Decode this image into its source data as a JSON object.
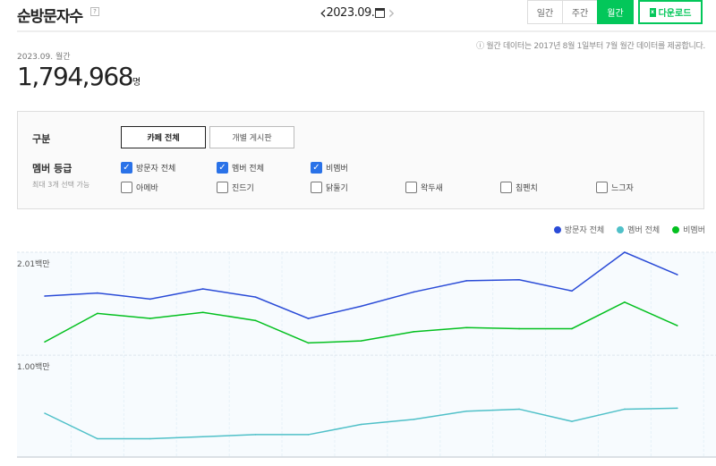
{
  "header": {
    "title": "순방문자수",
    "help": "?",
    "date": "2023.09.",
    "tabs": [
      {
        "label": "일간",
        "active": false
      },
      {
        "label": "주간",
        "active": false
      },
      {
        "label": "월간",
        "active": true
      }
    ],
    "download_label": "다운로드",
    "notice": "ⓘ 월간 데이터는 2017년 8월 1일부터 7월 월간 데이터를 제공합니다."
  },
  "summary": {
    "period": "2023.09. 월간",
    "value": "1,794,968",
    "unit": "명"
  },
  "filter": {
    "category_label": "구분",
    "category_buttons": [
      {
        "label": "카페 전체",
        "selected": true
      },
      {
        "label": "개별 게시판",
        "selected": false
      }
    ],
    "grade_label": "멤버 등급",
    "grade_hint": "최대 3개 선택 가능",
    "checkboxes": [
      {
        "label": "방문자 전체",
        "checked": true
      },
      {
        "label": "멤버 전체",
        "checked": true
      },
      {
        "label": "비멤버",
        "checked": true
      },
      {
        "label": "아메바",
        "checked": false
      },
      {
        "label": "진드기",
        "checked": false
      },
      {
        "label": "닭둘기",
        "checked": false
      },
      {
        "label": "왁두새",
        "checked": false
      },
      {
        "label": "침펜치",
        "checked": false
      },
      {
        "label": "느그자",
        "checked": false
      }
    ]
  },
  "chart_data": {
    "type": "line",
    "unit": "백만",
    "ylim": [
      0,
      2.01
    ],
    "yticks": [
      {
        "value": 2.01,
        "label": "2.01백만"
      },
      {
        "value": 1.0,
        "label": "1.00백만"
      }
    ],
    "grid": true,
    "legend": "top-right",
    "series": [
      {
        "name": "방문자 전체",
        "color": "#2a4bd7",
        "values": [
          1.58,
          1.61,
          1.55,
          1.65,
          1.57,
          1.36,
          1.48,
          1.62,
          1.73,
          1.74,
          1.63,
          2.01,
          1.79
        ]
      },
      {
        "name": "멤버 전체",
        "color": "#4fc0c8",
        "values": [
          0.43,
          0.18,
          0.18,
          0.2,
          0.22,
          0.22,
          0.32,
          0.37,
          0.45,
          0.47,
          0.35,
          0.47,
          0.48
        ]
      },
      {
        "name": "비멤버",
        "color": "#03c01f",
        "values": [
          1.13,
          1.41,
          1.36,
          1.42,
          1.34,
          1.12,
          1.14,
          1.23,
          1.27,
          1.26,
          1.26,
          1.52,
          1.29
        ]
      }
    ]
  }
}
